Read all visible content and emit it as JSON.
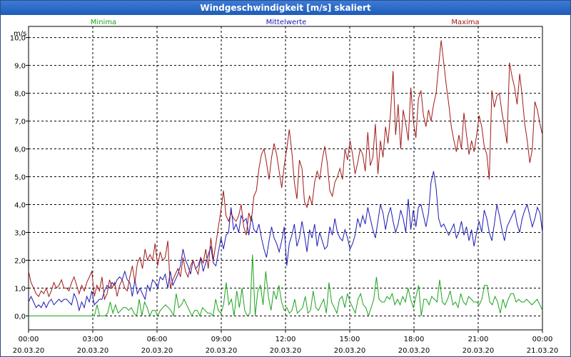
{
  "title": "Windgeschwindigkeit [m/s] skaliert",
  "chart_data": {
    "type": "line",
    "title": "Windgeschwindigkeit [m/s] skaliert",
    "ylabel": "m/s",
    "ylim": [
      -0.5,
      10.4
    ],
    "yticks": [
      "0,0",
      "1,0",
      "2,0",
      "3,0",
      "4,0",
      "5,0",
      "6,0",
      "7,0",
      "8,0",
      "9,0",
      "10,0"
    ],
    "xtick_times": [
      "00:00",
      "03:00",
      "06:00",
      "09:00",
      "12:00",
      "15:00",
      "18:00",
      "21:00",
      "00:00"
    ],
    "xtick_dates": [
      "20.03.20",
      "20.03.20",
      "20.03.20",
      "20.03.20",
      "20.03.20",
      "20.03.20",
      "20.03.20",
      "20.03.20",
      "21.03.20"
    ],
    "grid": true,
    "colors": {
      "minima": "#1aa31a",
      "mittel": "#1a1ab4",
      "maxima": "#a01818"
    },
    "series": [
      {
        "name": "Minima",
        "values": [
          0.0,
          0.0,
          0.0,
          0.0,
          0.0,
          0.0,
          0.0,
          0.0,
          0.0,
          0.0,
          0.0,
          0.0,
          0.0,
          0.0,
          0.0,
          0.0,
          0.0,
          0.0,
          0.0,
          0.0,
          0.0,
          0.0,
          0.0,
          0.0,
          0.0,
          0.0,
          0.4,
          0.0,
          0.0,
          0.0,
          0.1,
          0.5,
          0.1,
          0.4,
          0.1,
          0.2,
          0.3,
          0.3,
          0.2,
          0.3,
          0.1,
          0.0,
          0.6,
          0.0,
          0.5,
          0.3,
          0.0,
          0.2,
          0.2,
          0.0,
          0.2,
          0.3,
          0.4,
          0.3,
          0.2,
          0.0,
          0.8,
          0.3,
          0.4,
          0.6,
          0.4,
          0.2,
          0.0,
          0.2,
          0.2,
          0.0,
          0.3,
          0.2,
          0.1,
          0.1,
          0.0,
          0.6,
          0.2,
          0.1,
          0.4,
          1.2,
          0.4,
          0.6,
          0.0,
          0.9,
          0.3,
          1.0,
          0.2,
          0.0,
          0.1,
          2.2,
          0.0,
          0.9,
          1.1,
          0.4,
          1.6,
          0.7,
          0.2,
          0.9,
          0.6,
          1.1,
          0.5,
          0.2,
          0.3,
          0.1,
          0.2,
          0.6,
          0.1,
          0.2,
          0.3,
          0.7,
          0.1,
          0.2,
          0.9,
          0.3,
          0.2,
          0.4,
          0.6,
          0.1,
          1.2,
          0.5,
          0.3,
          0.1,
          0.6,
          0.7,
          0.3,
          0.8,
          0.5,
          0.3,
          0.1,
          0.6,
          0.8,
          0.4,
          0.3,
          0.0,
          0.3,
          0.6,
          1.4,
          0.6,
          0.5,
          0.5,
          0.7,
          0.6,
          0.8,
          0.4,
          0.6,
          0.4,
          0.7,
          0.5,
          1.0,
          0.6,
          0.3,
          0.7,
          1.1,
          0.0,
          0.6,
          0.6,
          0.4,
          0.7,
          0.6,
          0.5,
          1.3,
          0.5,
          0.4,
          0.6,
          0.9,
          0.4,
          0.5,
          0.3,
          0.8,
          0.5,
          0.4,
          0.7,
          0.6,
          0.5,
          0.5,
          0.4,
          0.6,
          1.1,
          1.1,
          0.5,
          0.4,
          0.7,
          0.5,
          0.1,
          0.6,
          0.3,
          0.6,
          0.8,
          0.8,
          0.5,
          0.6,
          0.5,
          0.5,
          0.6,
          0.5,
          0.4,
          0.5,
          0.6,
          0.4,
          0.2
        ]
      },
      {
        "name": "Mittelwerte",
        "values": [
          0.5,
          0.7,
          0.5,
          0.3,
          0.4,
          0.3,
          0.5,
          0.3,
          0.5,
          0.6,
          0.4,
          0.5,
          0.6,
          0.5,
          0.6,
          0.6,
          0.5,
          0.4,
          0.8,
          0.6,
          0.2,
          0.5,
          0.3,
          0.7,
          0.5,
          0.9,
          0.4,
          0.5,
          0.6,
          0.6,
          0.9,
          1.1,
          1.0,
          1.2,
          1.1,
          1.3,
          1.4,
          1.3,
          1.6,
          1.3,
          1.2,
          0.7,
          1.3,
          0.8,
          1.0,
          0.8,
          0.6,
          1.1,
          0.9,
          1.3,
          1.2,
          1.0,
          1.4,
          1.3,
          1.5,
          1.0,
          1.6,
          1.1,
          1.3,
          1.5,
          1.8,
          2.4,
          2.0,
          1.8,
          1.5,
          2.0,
          1.7,
          1.8,
          2.1,
          1.6,
          1.9,
          2.2,
          2.5,
          1.9,
          1.8,
          2.3,
          2.8,
          2.4,
          2.9,
          3.0,
          3.9,
          3.1,
          3.3,
          3.0,
          3.6,
          3.4,
          3.5,
          2.9,
          3.6,
          3.1,
          3.0,
          3.3,
          2.8,
          2.4,
          2.1,
          2.7,
          3.2,
          2.8,
          2.6,
          2.3,
          2.7,
          3.2,
          1.8,
          2.6,
          2.9,
          3.3,
          2.5,
          2.8,
          3.4,
          2.9,
          2.3,
          3.1,
          2.8,
          3.3,
          2.5,
          3.0,
          2.7,
          2.4,
          2.5,
          3.2,
          2.9,
          3.5,
          3.0,
          2.8,
          2.7,
          3.1,
          2.8,
          2.4,
          2.6,
          2.9,
          3.5,
          3.2,
          3.6,
          3.3,
          3.9,
          3.5,
          3.1,
          2.8,
          3.4,
          4.0,
          3.7,
          3.1,
          3.6,
          3.9,
          3.4,
          3.0,
          3.3,
          3.8,
          3.5,
          3.0,
          4.2,
          3.1,
          3.8,
          3.2,
          3.9,
          4.0,
          3.6,
          3.2,
          3.7,
          4.8,
          5.2,
          4.6,
          3.5,
          3.2,
          3.3,
          3.1,
          2.9,
          3.1,
          3.3,
          2.8,
          3.0,
          3.4,
          2.9,
          3.2,
          2.7,
          3.1,
          2.5,
          3.0,
          3.4,
          3.0,
          3.8,
          3.5,
          3.0,
          2.7,
          3.3,
          4.0,
          3.6,
          3.1,
          2.7,
          3.2,
          3.4,
          3.6,
          3.8,
          3.3,
          3.0,
          3.5,
          3.8,
          4.0,
          3.6,
          3.2,
          3.5,
          3.9,
          3.7,
          3.0
        ]
      },
      {
        "name": "Maxima",
        "values": [
          1.6,
          1.2,
          1.0,
          0.8,
          0.7,
          0.9,
          0.8,
          1.0,
          0.7,
          0.9,
          1.2,
          1.0,
          1.1,
          1.3,
          1.0,
          1.0,
          0.9,
          1.2,
          1.4,
          1.1,
          0.8,
          1.1,
          0.9,
          1.2,
          1.4,
          1.6,
          0.7,
          1.1,
          0.9,
          1.4,
          0.6,
          0.8,
          1.3,
          1.0,
          1.2,
          0.7,
          1.1,
          1.3,
          1.0,
          0.9,
          1.4,
          1.8,
          1.2,
          1.9,
          2.1,
          1.7,
          2.4,
          2.0,
          2.2,
          2.0,
          2.6,
          1.8,
          2.3,
          2.0,
          2.1,
          2.7,
          1.0,
          1.3,
          1.5,
          1.7,
          1.4,
          2.1,
          1.6,
          1.4,
          1.8,
          2.0,
          1.7,
          1.5,
          2.1,
          1.9,
          2.4,
          1.7,
          2.8,
          2.0,
          2.6,
          3.2,
          3.8,
          4.5,
          3.6,
          3.4,
          3.7,
          3.5,
          3.4,
          3.6,
          4.0,
          3.2,
          2.9,
          3.7,
          3.4,
          4.3,
          4.5,
          5.3,
          5.8,
          6.0,
          5.5,
          4.9,
          5.7,
          6.2,
          5.8,
          5.2,
          4.6,
          5.4,
          6.0,
          6.7,
          5.9,
          4.8,
          4.2,
          5.6,
          5.3,
          4.1,
          3.9,
          4.3,
          4.0,
          4.8,
          5.2,
          4.9,
          5.6,
          6.1,
          5.5,
          4.5,
          4.3,
          4.8,
          5.0,
          5.3,
          4.9,
          6.0,
          5.6,
          6.3,
          5.8,
          5.1,
          5.5,
          6.0,
          5.8,
          5.2,
          6.6,
          5.4,
          5.7,
          6.9,
          5.1,
          6.3,
          5.7,
          6.8,
          6.2,
          7.3,
          8.8,
          6.5,
          7.6,
          6.0,
          7.4,
          6.9,
          6.3,
          8.2,
          7.0,
          6.4,
          7.8,
          8.1,
          7.2,
          6.8,
          7.4,
          7.0,
          7.6,
          8.0,
          9.0,
          9.9,
          9.1,
          8.3,
          7.6,
          6.8,
          6.3,
          5.9,
          6.5,
          6.0,
          7.3,
          6.5,
          5.8,
          6.3,
          5.9,
          6.5,
          7.2,
          6.8,
          6.1,
          5.8,
          4.9,
          8.1,
          7.5,
          7.9,
          8.0,
          7.3,
          6.8,
          6.2,
          9.1,
          8.6,
          8.2,
          7.6,
          8.7,
          7.9,
          6.9,
          6.3,
          5.5,
          6.0,
          7.7,
          7.4,
          6.9,
          6.5
        ]
      }
    ]
  }
}
